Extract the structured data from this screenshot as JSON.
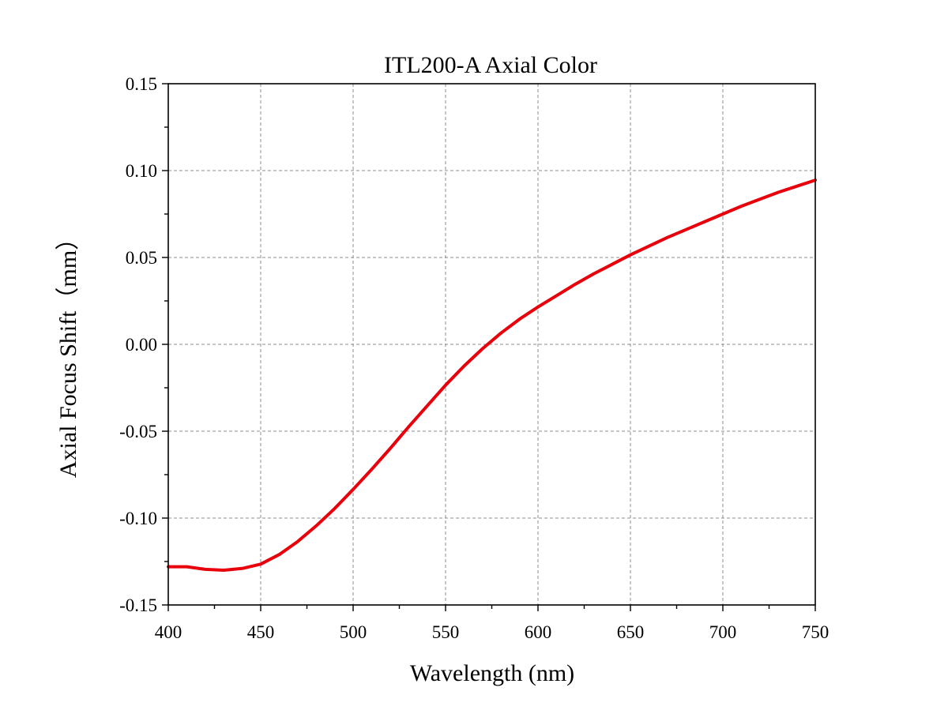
{
  "chart_data": {
    "type": "line",
    "title": "ITL200-A Axial Color",
    "xlabel": "Wavelength (nm)",
    "ylabel": "Axial Focus Shift（mm）",
    "xlim": [
      400,
      750
    ],
    "ylim": [
      -0.15,
      0.15
    ],
    "x_ticks": [
      400,
      450,
      500,
      550,
      600,
      650,
      700,
      750
    ],
    "x_tick_labels": [
      "400",
      "450",
      "500",
      "550",
      "600",
      "650",
      "700",
      "750"
    ],
    "x_minor_step": 25,
    "y_ticks": [
      -0.15,
      -0.1,
      -0.05,
      0.0,
      0.05,
      0.1,
      0.15
    ],
    "y_tick_labels": [
      "-0.15",
      "-0.10",
      "-0.05",
      "0.00",
      "0.05",
      "0.10",
      "0.15"
    ],
    "y_minor_step": 0.025,
    "grid": true,
    "legend": "none",
    "series": [
      {
        "color": "#e8000b",
        "x": [
          400,
          410,
          420,
          430,
          440,
          450,
          460,
          470,
          480,
          490,
          500,
          510,
          520,
          530,
          540,
          550,
          560,
          570,
          580,
          590,
          600,
          610,
          620,
          630,
          640,
          650,
          660,
          670,
          680,
          690,
          700,
          710,
          720,
          730,
          740,
          750
        ],
        "y": [
          -0.128,
          -0.128,
          -0.1295,
          -0.13,
          -0.129,
          -0.1265,
          -0.121,
          -0.1135,
          -0.1045,
          -0.0945,
          -0.0835,
          -0.072,
          -0.06,
          -0.0475,
          -0.0355,
          -0.0235,
          -0.0125,
          -0.0025,
          0.0065,
          0.0145,
          0.0215,
          0.028,
          0.0345,
          0.0405,
          0.046,
          0.0515,
          0.0565,
          0.0615,
          0.066,
          0.0705,
          0.075,
          0.0795,
          0.0835,
          0.0875,
          0.091,
          0.0945
        ]
      }
    ]
  }
}
